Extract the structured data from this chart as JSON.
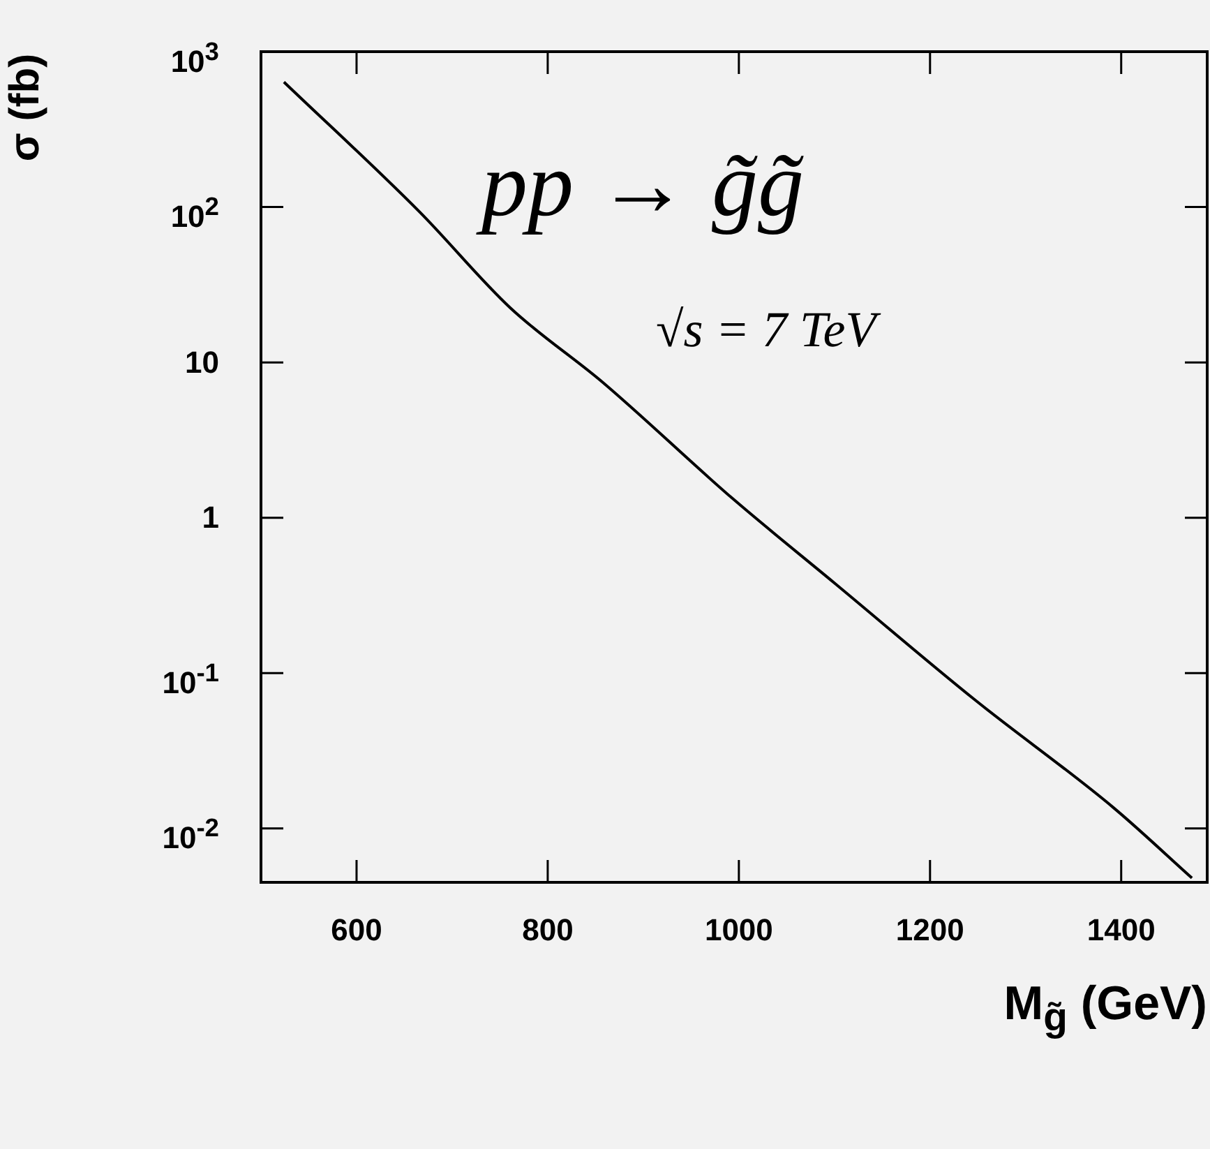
{
  "chart_data": {
    "type": "line",
    "xlabel": "M$_{g̃}$ (GeV)",
    "ylabel": "σ (fb)",
    "annotations": [
      "pp → g̃g̃",
      "√s = 7 TeV"
    ],
    "log": "y",
    "xlim": [
      500,
      1490
    ],
    "xticks": [
      600,
      800,
      1000,
      1200,
      1400
    ],
    "ylim": [
      0.0045,
      1000
    ],
    "yticks": [
      {
        "value": 1000,
        "label": "10$^{3}$"
      },
      {
        "value": 100,
        "label": "10$^{2}$"
      },
      {
        "value": 10,
        "label": "10"
      },
      {
        "value": 1,
        "label": "1"
      },
      {
        "value": 0.1,
        "label": "10$^{-1}$"
      },
      {
        "value": 0.01,
        "label": "10$^{-2}$"
      }
    ],
    "marker": "none",
    "line_style": "solid",
    "series": [
      {
        "color": "#000000",
        "x": [
          524,
          666,
          761,
          858,
          994,
          1100,
          1246,
          1392,
          1474
        ],
        "values": [
          638,
          93,
          22.4,
          7.4,
          1.32,
          0.38,
          0.068,
          0.0136,
          0.0048
        ]
      }
    ]
  }
}
